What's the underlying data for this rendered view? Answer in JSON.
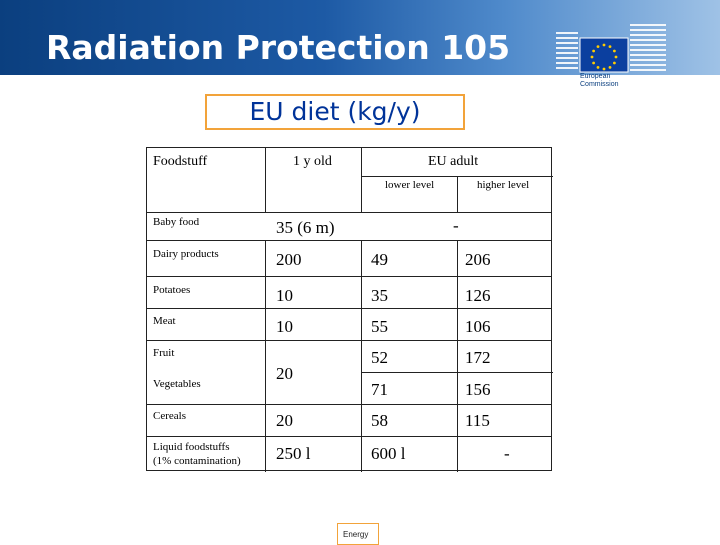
{
  "header": {
    "title": "Radiation Protection 105",
    "logo_text": "European\nCommission"
  },
  "subtitle": "EU diet (kg/y)",
  "table": {
    "headers": {
      "foodstuff": "Foodstuff",
      "one_year": "1 y old",
      "eu_adult": "EU adult",
      "lower": "lower level",
      "higher": "higher level"
    },
    "rows": [
      {
        "food": "Baby food",
        "infant": "35 (6 m)",
        "adult_span": "-"
      },
      {
        "food": "Dairy products",
        "infant": "200",
        "lower": "49",
        "higher": "206"
      },
      {
        "food": "Potatoes",
        "infant": "10",
        "lower": "35",
        "higher": "126"
      },
      {
        "food": "Meat",
        "infant": "10",
        "lower": "55",
        "higher": "106"
      },
      {
        "food": "Fruit",
        "lower": "52",
        "higher": "172"
      },
      {
        "food": "Vegetables",
        "lower": "71",
        "higher": "156"
      },
      {
        "food": "Cereals",
        "infant": "20",
        "lower": "58",
        "higher": "115"
      },
      {
        "food": "Liquid foodstuffs",
        "food_note": "(1% contamination)",
        "infant": "250 l",
        "lower": "600 l",
        "higher": "-"
      }
    ],
    "fruit_veg_infant": "20"
  },
  "footer": {
    "tag": "Energy"
  },
  "colors": {
    "banner": "#1d5aa5",
    "subtitle_text": "#003399",
    "accent_border": "#f2a33a"
  }
}
